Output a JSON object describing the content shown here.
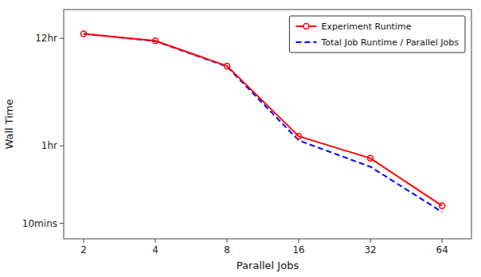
{
  "chart_data": {
    "type": "line",
    "x": [
      2,
      4,
      8,
      16,
      32,
      64
    ],
    "series": [
      {
        "name": "Experiment Runtime",
        "color": "#ff0000",
        "line_style": "solid",
        "marker": "o",
        "values": [
          800,
          680,
          380,
          75,
          45,
          15
        ]
      },
      {
        "name": "Total Job Runtime / Parallel Jobs",
        "color": "#0000ff",
        "line_style": "dashed",
        "values": [
          800,
          675,
          375,
          68,
          37,
          13
        ]
      }
    ],
    "xlabel": "Parallel Jobs",
    "ylabel": "Wall Time",
    "log": true,
    "xlim": [
      1.65,
      85
    ],
    "ylim": [
      7,
      1400
    ],
    "xticks": [
      2,
      4,
      8,
      16,
      32,
      64
    ],
    "yticks": [
      {
        "value": 10,
        "label": "10mins"
      },
      {
        "value": 60,
        "label": "1hr"
      },
      {
        "value": 720,
        "label": "12hr"
      }
    ],
    "grid": false,
    "legend": "upper right"
  }
}
